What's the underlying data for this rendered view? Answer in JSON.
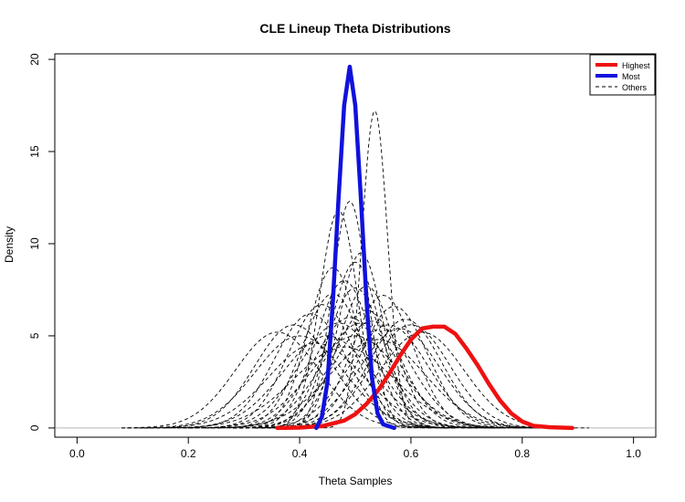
{
  "chart_data": {
    "type": "line",
    "title": "CLE Lineup Theta Distributions",
    "xlabel": "Theta Samples",
    "ylabel": "Density",
    "xlim": [
      -0.04,
      1.04
    ],
    "ylim": [
      -0.5,
      20.3
    ],
    "xticks": [
      "0.0",
      "0.2",
      "0.4",
      "0.6",
      "0.8",
      "1.0"
    ],
    "yticks": [
      "0",
      "5",
      "10",
      "15",
      "20"
    ],
    "grid": false,
    "baseline": 0,
    "legend": {
      "position": "top-right",
      "entries": [
        {
          "label": "Highest",
          "color": "#ee1111",
          "style": "solid"
        },
        {
          "label": "Most",
          "color": "#1111dd",
          "style": "solid"
        },
        {
          "label": "Others",
          "color": "#000000",
          "style": "dashed"
        }
      ]
    },
    "series": [
      {
        "name": "Highest",
        "color": "#ee1111",
        "x": [
          0.36,
          0.4,
          0.44,
          0.48,
          0.5,
          0.52,
          0.54,
          0.56,
          0.58,
          0.6,
          0.62,
          0.64,
          0.66,
          0.68,
          0.7,
          0.72,
          0.74,
          0.76,
          0.78,
          0.8,
          0.82,
          0.85,
          0.89
        ],
        "y": [
          0.0,
          0.02,
          0.1,
          0.4,
          0.75,
          1.3,
          2.0,
          2.9,
          3.9,
          4.8,
          5.4,
          5.5,
          5.5,
          5.1,
          4.3,
          3.4,
          2.4,
          1.5,
          0.8,
          0.35,
          0.12,
          0.04,
          0.0
        ]
      },
      {
        "name": "Most",
        "color": "#1111dd",
        "x": [
          0.43,
          0.44,
          0.45,
          0.46,
          0.47,
          0.48,
          0.49,
          0.5,
          0.51,
          0.52,
          0.53,
          0.54,
          0.55,
          0.57
        ],
        "y": [
          0.0,
          0.6,
          2.5,
          7.0,
          12.5,
          17.5,
          19.6,
          17.5,
          12.5,
          7.0,
          2.7,
          0.8,
          0.2,
          0.0
        ]
      }
    ],
    "others": [
      {
        "mean": 0.535,
        "sd": 0.023,
        "peak": 17.2
      },
      {
        "mean": 0.49,
        "sd": 0.032,
        "peak": 12.3
      },
      {
        "mean": 0.47,
        "sd": 0.034,
        "peak": 11.8
      },
      {
        "mean": 0.5,
        "sd": 0.045,
        "peak": 9.0
      },
      {
        "mean": 0.48,
        "sd": 0.05,
        "peak": 8.0
      },
      {
        "mean": 0.46,
        "sd": 0.055,
        "peak": 7.3
      },
      {
        "mean": 0.52,
        "sd": 0.05,
        "peak": 7.7
      },
      {
        "mean": 0.5,
        "sd": 0.052,
        "peak": 7.6
      },
      {
        "mean": 0.55,
        "sd": 0.055,
        "peak": 7.2
      },
      {
        "mean": 0.42,
        "sd": 0.065,
        "peak": 6.2
      },
      {
        "mean": 0.44,
        "sd": 0.06,
        "peak": 6.7
      },
      {
        "mean": 0.47,
        "sd": 0.07,
        "peak": 5.7
      },
      {
        "mean": 0.49,
        "sd": 0.065,
        "peak": 6.0
      },
      {
        "mean": 0.51,
        "sd": 0.07,
        "peak": 5.7
      },
      {
        "mean": 0.53,
        "sd": 0.068,
        "peak": 5.8
      },
      {
        "mean": 0.56,
        "sd": 0.07,
        "peak": 5.6
      },
      {
        "mean": 0.58,
        "sd": 0.072,
        "peak": 5.4
      },
      {
        "mean": 0.6,
        "sd": 0.07,
        "peak": 5.6
      },
      {
        "mean": 0.62,
        "sd": 0.075,
        "peak": 5.2
      },
      {
        "mean": 0.39,
        "sd": 0.07,
        "peak": 5.6
      },
      {
        "mean": 0.36,
        "sd": 0.075,
        "peak": 5.2
      },
      {
        "mean": 0.45,
        "sd": 0.08,
        "peak": 5.0
      },
      {
        "mean": 0.5,
        "sd": 0.08,
        "peak": 5.0
      },
      {
        "mean": 0.54,
        "sd": 0.085,
        "peak": 4.8
      },
      {
        "mean": 0.48,
        "sd": 0.09,
        "peak": 4.4
      },
      {
        "mean": 0.43,
        "sd": 0.085,
        "peak": 4.6
      },
      {
        "mean": 0.57,
        "sd": 0.06,
        "peak": 6.6
      },
      {
        "mean": 0.52,
        "sd": 0.06,
        "peak": 6.4
      },
      {
        "mean": 0.46,
        "sd": 0.045,
        "peak": 8.7
      },
      {
        "mean": 0.51,
        "sd": 0.04,
        "peak": 9.5
      },
      {
        "mean": 0.4,
        "sd": 0.08,
        "peak": 5.0
      },
      {
        "mean": 0.59,
        "sd": 0.065,
        "peak": 5.9
      }
    ]
  }
}
